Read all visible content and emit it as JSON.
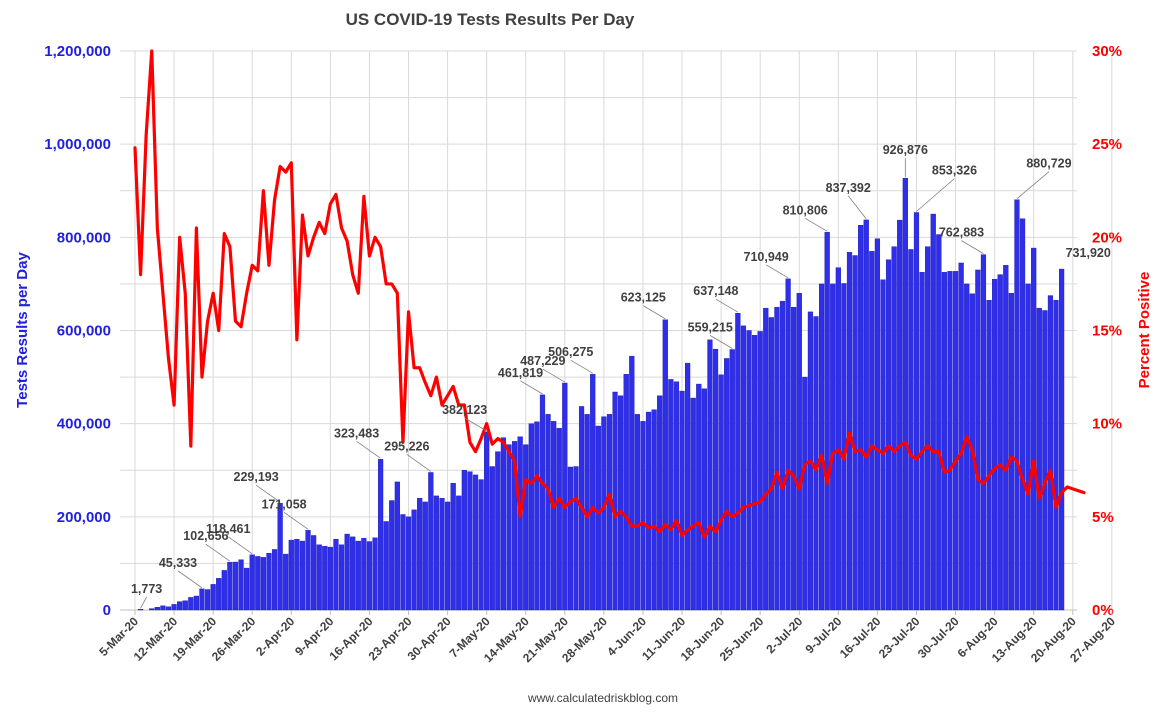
{
  "chart_data": {
    "type": "bar",
    "title": "US COVID-19 Tests Results Per Day",
    "ylabel": "Tests Results per Day",
    "y2label": "Percent Positive",
    "ylim": [
      0,
      1200000
    ],
    "y2lim": [
      0,
      30
    ],
    "yticks": [
      "0",
      "200,000",
      "400,000",
      "600,000",
      "800,000",
      "1,000,000",
      "1,200,000"
    ],
    "y2ticks": [
      "0%",
      "5%",
      "10%",
      "15%",
      "20%",
      "25%",
      "30%"
    ],
    "xticks": [
      "5-Mar-20",
      "12-Mar-20",
      "19-Mar-20",
      "26-Mar-20",
      "2-Apr-20",
      "9-Apr-20",
      "16-Apr-20",
      "23-Apr-20",
      "30-Apr-20",
      "7-May-20",
      "14-May-20",
      "21-May-20",
      "28-May-20",
      "4-Jun-20",
      "11-Jun-20",
      "18-Jun-20",
      "25-Jun-20",
      "2-Jul-20",
      "9-Jul-20",
      "16-Jul-20",
      "23-Jul-20",
      "30-Jul-20",
      "6-Aug-20",
      "13-Aug-20",
      "20-Aug-20",
      "27-Aug-20"
    ],
    "start_date": "5-Mar-20",
    "source": "www.calculatedriskblog.com",
    "colors": {
      "bars": "#2e2eeb",
      "bar_edge": "#1a1aa8",
      "line": "#ff0000",
      "left_axis": "#2020e0",
      "right_axis": "#ff0000",
      "grid": "#d9d9d9"
    },
    "series": [
      {
        "name": "Tests Results per Day",
        "type": "bar",
        "values": [
          0,
          1773,
          0,
          3000,
          6000,
          9000,
          7000,
          12000,
          18000,
          20000,
          27000,
          30000,
          45333,
          44000,
          55000,
          68000,
          85000,
          102656,
          103000,
          108000,
          90000,
          118461,
          115000,
          113000,
          122000,
          130000,
          229193,
          120000,
          150000,
          152000,
          148000,
          171058,
          160000,
          140000,
          137000,
          135000,
          152000,
          140000,
          163000,
          157000,
          148000,
          154000,
          147000,
          155000,
          323483,
          190000,
          235000,
          275000,
          205000,
          200000,
          215000,
          240000,
          232000,
          295226,
          245000,
          240000,
          232000,
          272000,
          245000,
          300000,
          297000,
          290000,
          280000,
          382123,
          308000,
          340000,
          370000,
          355000,
          362000,
          372000,
          355000,
          400000,
          404000,
          461819,
          420000,
          405000,
          390000,
          487229,
          307000,
          308000,
          437000,
          420000,
          506275,
          395000,
          415000,
          420000,
          468000,
          460000,
          506000,
          545000,
          420000,
          405000,
          425000,
          430000,
          460000,
          623125,
          495000,
          490000,
          470000,
          530000,
          455000,
          485000,
          475000,
          580000,
          560000,
          505000,
          540000,
          559215,
          637148,
          610000,
          600000,
          590000,
          598000,
          648000,
          628000,
          650000,
          663000,
          710949,
          650000,
          680000,
          500000,
          640000,
          630000,
          700000,
          810806,
          700000,
          735000,
          701000,
          768000,
          761000,
          826000,
          837392,
          770000,
          797000,
          709000,
          752000,
          780000,
          837000,
          926876,
          774000,
          853326,
          725000,
          780000,
          850000,
          806000,
          725000,
          727000,
          727000,
          745000,
          700000,
          679000,
          730000,
          762883,
          665000,
          710000,
          720000,
          740000,
          680000,
          880729,
          840000,
          700000,
          777000,
          648000,
          643000,
          675000,
          665000,
          731920
        ],
        "annotations": [
          {
            "i": 1,
            "text": "1,773"
          },
          {
            "i": 12,
            "text": "45,333"
          },
          {
            "i": 17,
            "text": "102,656"
          },
          {
            "i": 21,
            "text": "118,461"
          },
          {
            "i": 26,
            "text": "229,193"
          },
          {
            "i": 31,
            "text": "171,058"
          },
          {
            "i": 44,
            "text": "323,483"
          },
          {
            "i": 53,
            "text": "295,226"
          },
          {
            "i": 63,
            "text": "382,123"
          },
          {
            "i": 73,
            "text": "461,819"
          },
          {
            "i": 77,
            "text": "487,229"
          },
          {
            "i": 82,
            "text": "506,275"
          },
          {
            "i": 95,
            "text": "623,125"
          },
          {
            "i": 107,
            "text": "559,215"
          },
          {
            "i": 108,
            "text": "637,148"
          },
          {
            "i": 117,
            "text": "710,949"
          },
          {
            "i": 124,
            "text": "810,806"
          },
          {
            "i": 131,
            "text": "837,392"
          },
          {
            "i": 138,
            "text": "926,876"
          },
          {
            "i": 140,
            "text": "853,326"
          },
          {
            "i": 152,
            "text": "762,883"
          },
          {
            "i": 158,
            "text": "880,729"
          },
          {
            "i": 166,
            "text": "731,920"
          }
        ]
      },
      {
        "name": "Percent Positive",
        "type": "line",
        "points": [
          [
            0,
            24.8
          ],
          [
            1,
            18
          ],
          [
            2,
            25.5
          ],
          [
            3,
            30
          ],
          [
            4,
            20.5
          ],
          [
            5,
            17
          ],
          [
            6,
            13.5
          ],
          [
            7,
            11
          ],
          [
            8,
            20
          ],
          [
            9,
            17
          ],
          [
            10,
            8.8
          ],
          [
            11,
            20.5
          ],
          [
            12,
            12.5
          ],
          [
            13,
            15.5
          ],
          [
            14,
            17
          ],
          [
            15,
            15
          ],
          [
            16,
            20.2
          ],
          [
            17,
            19.5
          ],
          [
            18,
            15.5
          ],
          [
            19,
            15.2
          ],
          [
            20,
            17
          ],
          [
            21,
            18.5
          ],
          [
            22,
            18.2
          ],
          [
            23,
            22.5
          ],
          [
            24,
            18.5
          ],
          [
            25,
            22
          ],
          [
            26,
            23.8
          ],
          [
            27,
            23.5
          ],
          [
            28,
            24
          ],
          [
            29,
            14.5
          ],
          [
            30,
            21.2
          ],
          [
            31,
            19
          ],
          [
            32,
            20
          ],
          [
            33,
            20.8
          ],
          [
            34,
            20.2
          ],
          [
            35,
            21.8
          ],
          [
            36,
            22.3
          ],
          [
            37,
            20.5
          ],
          [
            38,
            19.8
          ],
          [
            39,
            18
          ],
          [
            40,
            17
          ],
          [
            41,
            22.2
          ],
          [
            42,
            19
          ],
          [
            43,
            20
          ],
          [
            44,
            19.5
          ],
          [
            45,
            17.5
          ],
          [
            46,
            17.5
          ],
          [
            47,
            17
          ],
          [
            48,
            9
          ],
          [
            49,
            16
          ],
          [
            50,
            13
          ],
          [
            51,
            13
          ],
          [
            52,
            12.2
          ],
          [
            53,
            11.5
          ],
          [
            54,
            12.5
          ],
          [
            55,
            11
          ],
          [
            56,
            11.5
          ],
          [
            57,
            12
          ],
          [
            58,
            11
          ],
          [
            59,
            11
          ],
          [
            60,
            9
          ],
          [
            61,
            8.5
          ],
          [
            62,
            9.2
          ],
          [
            63,
            10
          ],
          [
            64,
            8.9
          ],
          [
            65,
            9.2
          ],
          [
            66,
            9
          ],
          [
            67,
            8.5
          ],
          [
            68,
            8
          ],
          [
            69,
            5
          ],
          [
            70,
            7
          ],
          [
            71,
            6.8
          ],
          [
            72,
            7.2
          ],
          [
            73,
            6.8
          ],
          [
            74,
            6.5
          ],
          [
            75,
            5.5
          ],
          [
            76,
            6
          ],
          [
            77,
            5.5
          ],
          [
            78,
            5.8
          ],
          [
            79,
            6
          ],
          [
            80,
            5.5
          ],
          [
            81,
            5
          ],
          [
            82,
            5.5
          ],
          [
            83,
            5.2
          ],
          [
            84,
            5.5
          ],
          [
            85,
            6.2
          ],
          [
            86,
            5
          ],
          [
            87,
            5.3
          ],
          [
            88,
            5
          ],
          [
            89,
            4.5
          ],
          [
            90,
            4.5
          ],
          [
            91,
            4.7
          ],
          [
            92,
            4.4
          ],
          [
            93,
            4.5
          ],
          [
            94,
            4.2
          ],
          [
            95,
            4.6
          ],
          [
            96,
            4.3
          ],
          [
            97,
            4.8
          ],
          [
            98,
            4.0
          ],
          [
            99,
            4.3
          ],
          [
            100,
            4.5
          ],
          [
            101,
            4.7
          ],
          [
            102,
            3.9
          ],
          [
            103,
            4.5
          ],
          [
            104,
            4.2
          ],
          [
            105,
            4.8
          ],
          [
            106,
            5.3
          ],
          [
            107,
            5
          ],
          [
            108,
            5.2
          ],
          [
            109,
            5.5
          ],
          [
            110,
            5.6
          ],
          [
            111,
            5.7
          ],
          [
            112,
            5.8
          ],
          [
            113,
            6.2
          ],
          [
            114,
            6.5
          ],
          [
            115,
            7.4
          ],
          [
            116,
            6.5
          ],
          [
            117,
            7.5
          ],
          [
            118,
            7.2
          ],
          [
            119,
            6.5
          ],
          [
            120,
            7.8
          ],
          [
            121,
            8
          ],
          [
            122,
            7.5
          ],
          [
            123,
            8.3
          ],
          [
            124,
            6.8
          ],
          [
            125,
            8.4
          ],
          [
            126,
            8.6
          ],
          [
            127,
            8.1
          ],
          [
            128,
            9.5
          ],
          [
            129,
            8.5
          ],
          [
            130,
            8.6
          ],
          [
            131,
            8.2
          ],
          [
            132,
            8.8
          ],
          [
            133,
            8.6
          ],
          [
            134,
            8.4
          ],
          [
            135,
            8.8
          ],
          [
            136,
            8.5
          ],
          [
            137,
            8.8
          ],
          [
            138,
            9
          ],
          [
            139,
            8.3
          ],
          [
            140,
            8.1
          ],
          [
            141,
            8.5
          ],
          [
            142,
            8.8
          ],
          [
            143,
            8.5
          ],
          [
            144,
            8.5
          ],
          [
            145,
            7.4
          ],
          [
            146,
            7.5
          ],
          [
            147,
            8
          ],
          [
            148,
            8.4
          ],
          [
            149,
            9.3
          ],
          [
            150,
            8.6
          ],
          [
            151,
            7
          ],
          [
            152,
            6.8
          ],
          [
            153,
            7.2
          ],
          [
            154,
            7.6
          ],
          [
            155,
            7.8
          ],
          [
            156,
            7.5
          ],
          [
            157,
            8.2
          ],
          [
            158,
            8
          ],
          [
            159,
            7
          ],
          [
            160,
            6.2
          ],
          [
            161,
            8
          ],
          [
            162,
            6
          ],
          [
            163,
            6.8
          ],
          [
            164,
            7.5
          ],
          [
            165,
            5.5
          ],
          [
            166,
            6.3
          ],
          [
            167,
            6.6
          ],
          [
            168,
            6.5
          ],
          [
            169,
            6.4
          ],
          [
            170,
            6.3
          ]
        ]
      }
    ]
  }
}
